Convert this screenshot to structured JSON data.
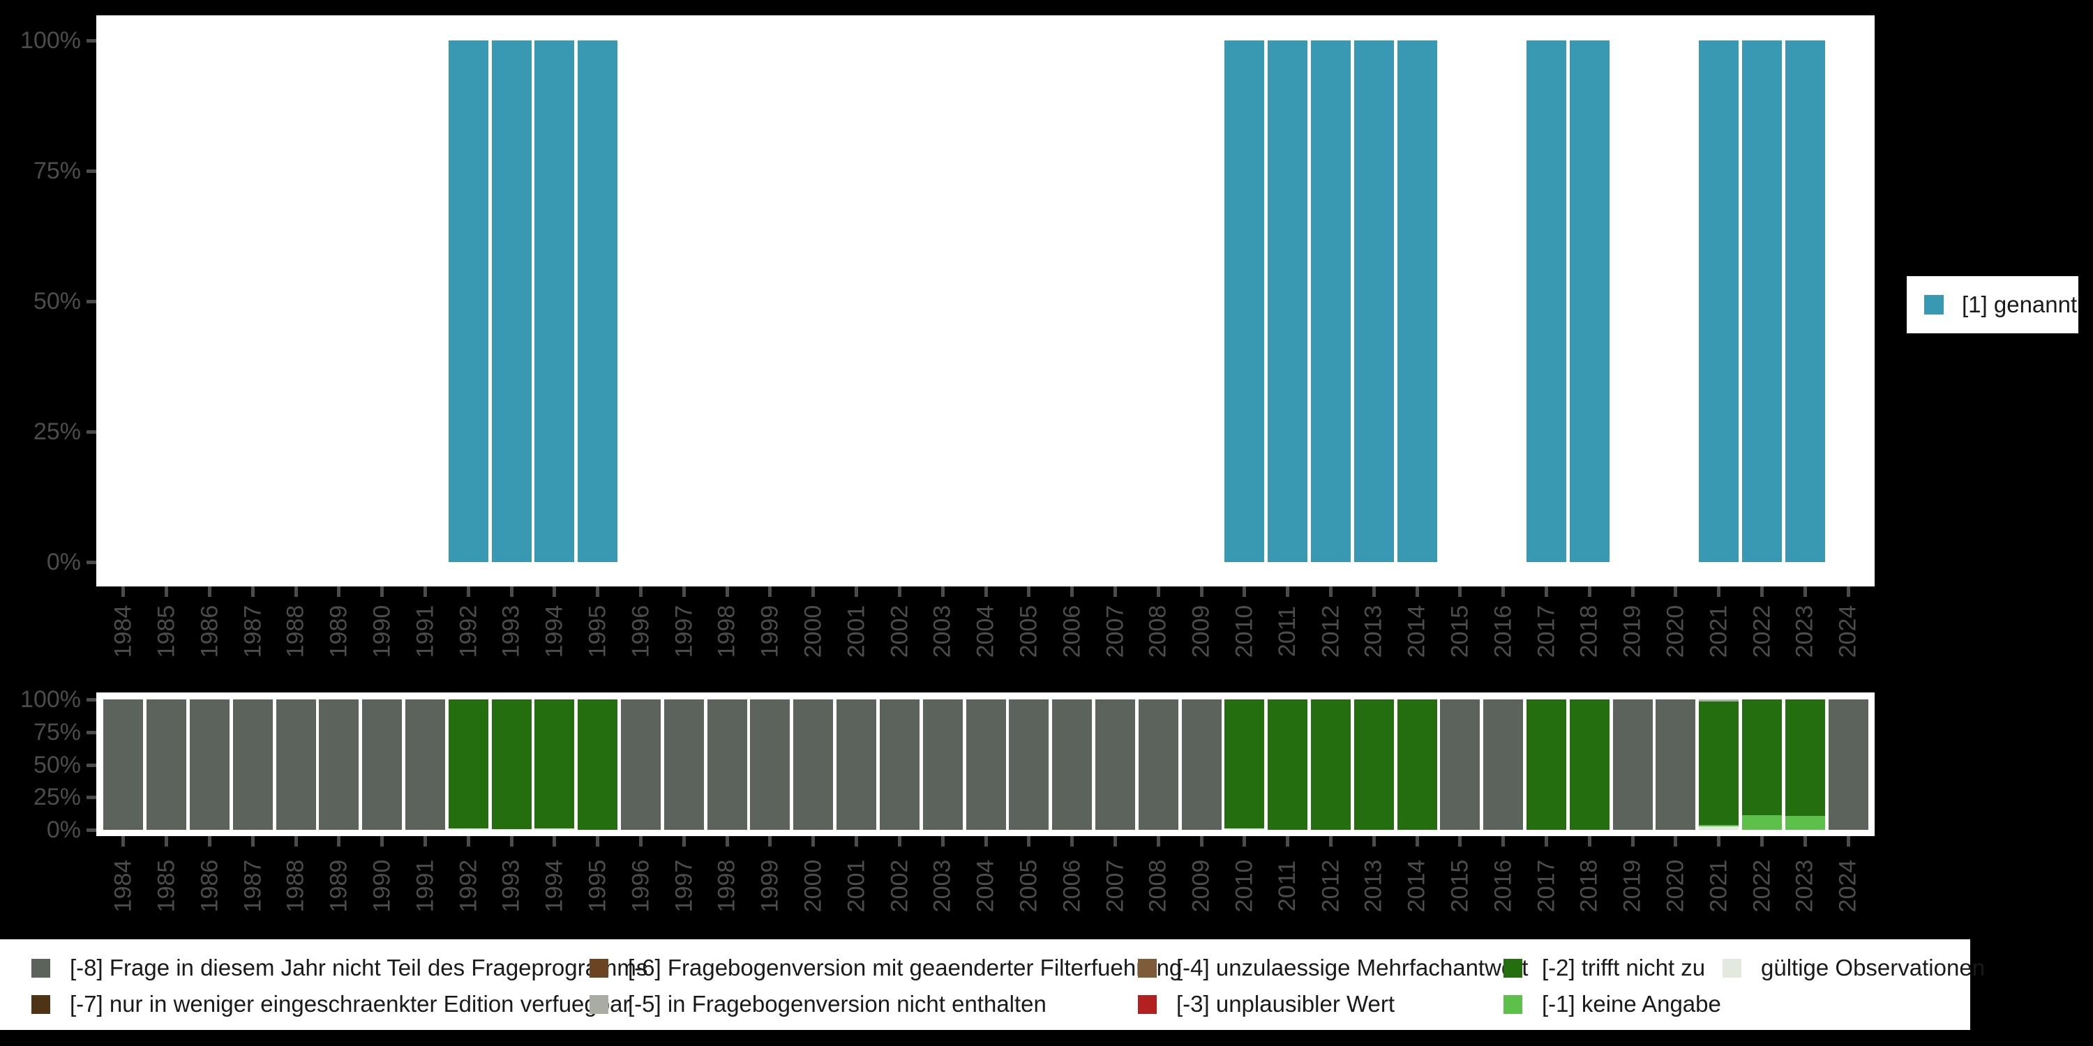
{
  "colors": {
    "background": "#000000",
    "panel": "#ffffff",
    "axis_text": "#4c4c4c",
    "legend_text": "#1a1a1a",
    "mentioned": "#3a99b2"
  },
  "axes": {
    "y_ticks": [
      "100%",
      "75%",
      "50%",
      "25%",
      "0%"
    ]
  },
  "legend_right": {
    "label": "[1] genannt",
    "color": "#3a99b2"
  },
  "chart_data": [
    {
      "type": "bar",
      "title": "",
      "xlabel": "",
      "ylabel": "",
      "ylim": [
        0,
        100
      ],
      "yticks": [
        "0%",
        "25%",
        "50%",
        "75%",
        "100%"
      ],
      "legend_position": "right",
      "grid": false,
      "categories": [
        "1984",
        "1985",
        "1986",
        "1987",
        "1988",
        "1989",
        "1990",
        "1991",
        "1992",
        "1993",
        "1994",
        "1995",
        "1996",
        "1997",
        "1998",
        "1999",
        "2000",
        "2001",
        "2002",
        "2003",
        "2004",
        "2005",
        "2006",
        "2007",
        "2008",
        "2009",
        "2010",
        "2011",
        "2012",
        "2013",
        "2014",
        "2015",
        "2016",
        "2017",
        "2018",
        "2019",
        "2020",
        "2021",
        "2022",
        "2023",
        "2024"
      ],
      "series": [
        {
          "name": "[1] genannt",
          "color": "#3a99b2",
          "values": [
            0,
            0,
            0,
            0,
            0,
            0,
            0,
            0,
            100,
            100,
            100,
            100,
            0,
            0,
            0,
            0,
            0,
            0,
            0,
            0,
            0,
            0,
            0,
            0,
            0,
            0,
            100,
            100,
            100,
            100,
            100,
            0,
            0,
            100,
            100,
            0,
            0,
            100,
            100,
            100,
            0
          ]
        }
      ]
    },
    {
      "type": "stacked_bar_percent",
      "title": "",
      "xlabel": "",
      "ylabel": "",
      "ylim": [
        0,
        100
      ],
      "yticks": [
        "0%",
        "25%",
        "50%",
        "75%",
        "100%"
      ],
      "legend_position": "bottom",
      "grid": false,
      "categories": [
        "1984",
        "1985",
        "1986",
        "1987",
        "1988",
        "1989",
        "1990",
        "1991",
        "1992",
        "1993",
        "1994",
        "1995",
        "1996",
        "1997",
        "1998",
        "1999",
        "2000",
        "2001",
        "2002",
        "2003",
        "2004",
        "2005",
        "2006",
        "2007",
        "2008",
        "2009",
        "2010",
        "2011",
        "2012",
        "2013",
        "2014",
        "2015",
        "2016",
        "2017",
        "2018",
        "2019",
        "2020",
        "2021",
        "2022",
        "2023",
        "2024"
      ],
      "series": [
        {
          "name": "gültige Observationen",
          "color": "#e3e9df",
          "values": [
            0,
            0,
            0,
            0,
            0,
            0,
            0,
            0,
            1,
            0.5,
            1,
            0,
            0,
            0,
            0,
            0,
            0,
            0,
            0,
            0,
            0,
            0,
            0,
            0,
            0,
            0,
            1,
            0,
            0,
            0,
            0,
            0,
            0,
            0,
            0,
            0,
            0,
            2.5,
            0,
            0,
            0
          ]
        },
        {
          "name": "[-1] keine Angabe",
          "color": "#5dc04a",
          "values": [
            0,
            0,
            0,
            0,
            0,
            0,
            0,
            0,
            0,
            0,
            0,
            0,
            0,
            0,
            0,
            0,
            0,
            0,
            0,
            0,
            0,
            0,
            0,
            0,
            0,
            0,
            0,
            0,
            0,
            0,
            0,
            0,
            0,
            0,
            0,
            0,
            0,
            1.5,
            11.5,
            10.5,
            0
          ]
        },
        {
          "name": "[-2] trifft nicht zu",
          "color": "#256e0f",
          "values": [
            0,
            0,
            0,
            0,
            0,
            0,
            0,
            0,
            99,
            99.5,
            99,
            100,
            0,
            0,
            0,
            0,
            0,
            0,
            0,
            0,
            0,
            0,
            0,
            0,
            0,
            0,
            99,
            100,
            100,
            100,
            100,
            0,
            0,
            100,
            100,
            0,
            0,
            94.5,
            88.5,
            89.5,
            0
          ]
        },
        {
          "name": "[-3] unplausibler Wert",
          "color": "#b22020",
          "values": [
            0,
            0,
            0,
            0,
            0,
            0,
            0,
            0,
            0,
            0,
            0,
            0,
            0,
            0,
            0,
            0,
            0,
            0,
            0,
            0,
            0,
            0,
            0,
            0,
            0,
            0,
            0,
            0,
            0,
            0,
            0,
            0,
            0,
            0,
            0,
            0,
            0,
            0,
            0,
            0,
            0
          ]
        },
        {
          "name": "[-4] unzulaessige Mehrfachantwort",
          "color": "#7f5c38",
          "values": [
            0,
            0,
            0,
            0,
            0,
            0,
            0,
            0,
            0,
            0,
            0,
            0,
            0,
            0,
            0,
            0,
            0,
            0,
            0,
            0,
            0,
            0,
            0,
            0,
            0,
            0,
            0,
            0,
            0,
            0,
            0,
            0,
            0,
            0,
            0,
            0,
            0,
            0,
            0,
            0,
            0
          ]
        },
        {
          "name": "[-5] in Fragebogenversion nicht enthalten",
          "color": "#a8aca3",
          "values": [
            0,
            0,
            0,
            0,
            0,
            0,
            0,
            0,
            0,
            0,
            0,
            0,
            0,
            0,
            0,
            0,
            0,
            0,
            0,
            0,
            0,
            0,
            0,
            0,
            0,
            0,
            0,
            0,
            0,
            0,
            0,
            0,
            0,
            0,
            0,
            0,
            0,
            1.5,
            0,
            0,
            0
          ]
        },
        {
          "name": "[-6] Fragebogenversion mit geaenderter Filterfuehrung",
          "color": "#6b4423",
          "values": [
            0,
            0,
            0,
            0,
            0,
            0,
            0,
            0,
            0,
            0,
            0,
            0,
            0,
            0,
            0,
            0,
            0,
            0,
            0,
            0,
            0,
            0,
            0,
            0,
            0,
            0,
            0,
            0,
            0,
            0,
            0,
            0,
            0,
            0,
            0,
            0,
            0,
            0,
            0,
            0,
            0
          ]
        },
        {
          "name": "[-7] nur in weniger eingeschraenkter Edition verfuegbar",
          "color": "#4e3317",
          "values": [
            0,
            0,
            0,
            0,
            0,
            0,
            0,
            0,
            0,
            0,
            0,
            0,
            0,
            0,
            0,
            0,
            0,
            0,
            0,
            0,
            0,
            0,
            0,
            0,
            0,
            0,
            0,
            0,
            0,
            0,
            0,
            0,
            0,
            0,
            0,
            0,
            0,
            0,
            0,
            0,
            0
          ]
        },
        {
          "name": "[-8] Frage in diesem Jahr nicht Teil des Frageprogramms",
          "color": "#5c635c",
          "values": [
            100,
            100,
            100,
            100,
            100,
            100,
            100,
            100,
            0,
            0,
            0,
            0,
            100,
            100,
            100,
            100,
            100,
            100,
            100,
            100,
            100,
            100,
            100,
            100,
            100,
            100,
            0,
            0,
            0,
            0,
            0,
            100,
            100,
            0,
            0,
            100,
            100,
            0,
            0,
            0,
            100
          ]
        }
      ]
    }
  ]
}
